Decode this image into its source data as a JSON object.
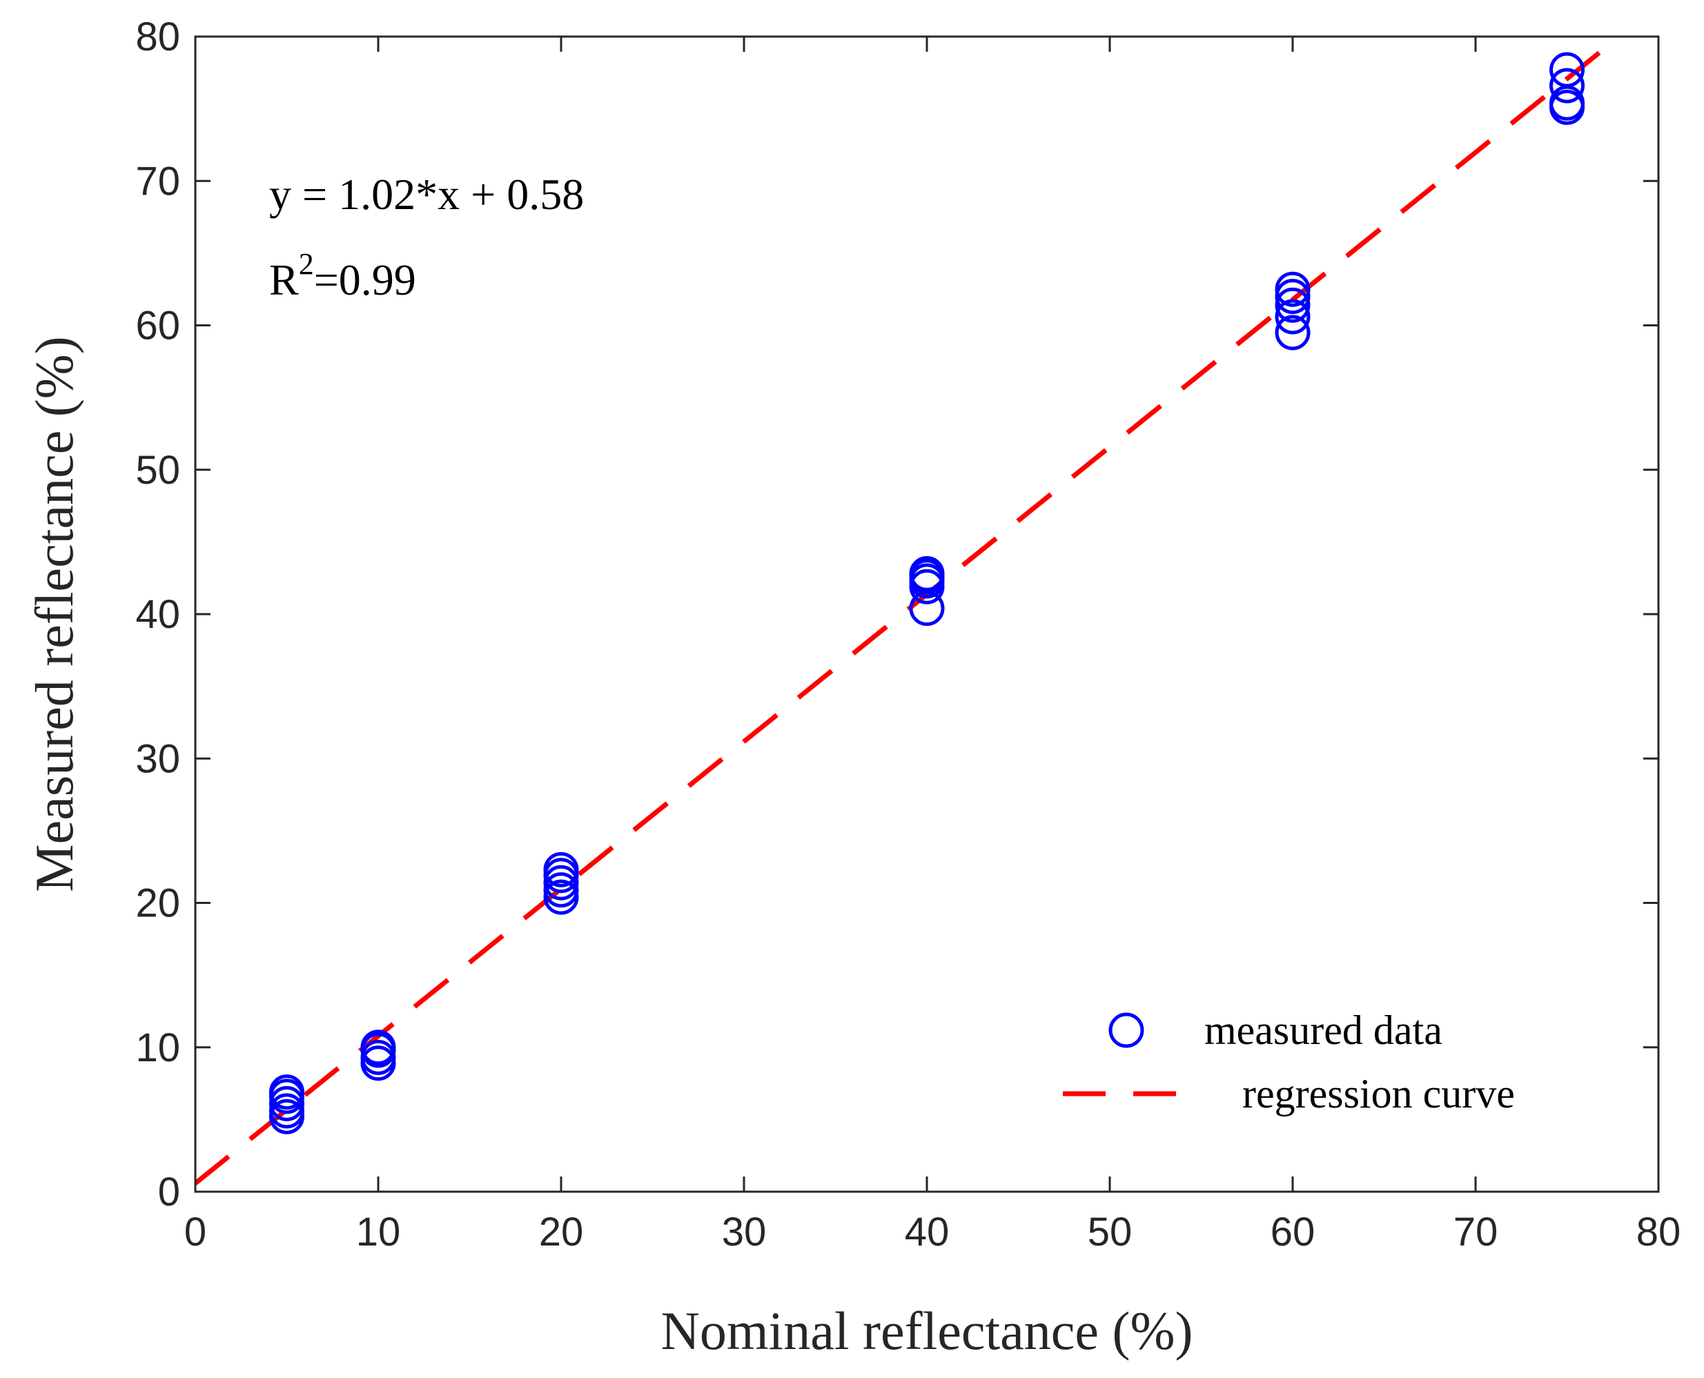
{
  "chart_data": {
    "type": "scatter",
    "xlabel": "Nominal reflectance (%)",
    "ylabel": "Measured reflectance (%)",
    "xlim": [
      0,
      80
    ],
    "ylim": [
      0,
      80
    ],
    "xticks": [
      0,
      10,
      20,
      30,
      40,
      50,
      60,
      70,
      80
    ],
    "yticks": [
      0,
      10,
      20,
      30,
      40,
      50,
      60,
      70,
      80
    ],
    "grid": false,
    "annotations": {
      "equation": "y = 1.02*x + 0.58",
      "r2_prefix": "R",
      "r2_exponent": "2",
      "r2_value": "=0.99"
    },
    "legend": {
      "placement": "bottom-right",
      "entries": [
        "measured data",
        "regression curve"
      ]
    },
    "series": [
      {
        "name": "measured data",
        "marker": "open-circle",
        "color": "#0000ff",
        "points": [
          [
            5,
            5.2
          ],
          [
            5,
            5.6
          ],
          [
            5,
            6.1
          ],
          [
            5,
            6.6
          ],
          [
            5,
            6.9
          ],
          [
            10,
            8.9
          ],
          [
            10,
            9.3
          ],
          [
            10,
            9.8
          ],
          [
            10,
            10.0
          ],
          [
            20,
            20.4
          ],
          [
            20,
            20.9
          ],
          [
            20,
            21.4
          ],
          [
            20,
            21.9
          ],
          [
            20,
            22.3
          ],
          [
            40,
            40.4
          ],
          [
            40,
            41.9
          ],
          [
            40,
            42.3
          ],
          [
            40,
            42.6
          ],
          [
            40,
            42.8
          ],
          [
            60,
            59.5
          ],
          [
            60,
            60.6
          ],
          [
            60,
            61.4
          ],
          [
            60,
            62.0
          ],
          [
            60,
            62.5
          ],
          [
            75,
            75.1
          ],
          [
            75,
            75.4
          ],
          [
            75,
            76.6
          ],
          [
            75,
            77.7
          ]
        ]
      },
      {
        "name": "regression curve",
        "style": "dashed",
        "color": "#ff0000",
        "slope": 1.02,
        "intercept": 0.58,
        "x_range": [
          0,
          80
        ]
      }
    ]
  }
}
